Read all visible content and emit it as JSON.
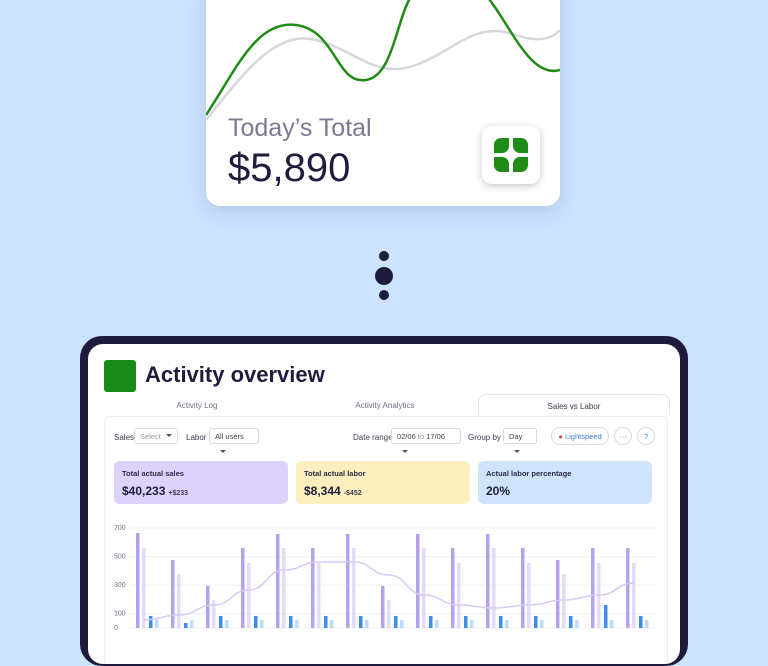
{
  "card": {
    "label": "Today’s Total",
    "value": "$5,890"
  },
  "dashboard": {
    "title": "Activity overview",
    "tabs": [
      "Activity Log",
      "Activity Analytics",
      "Sales vs Labor"
    ],
    "filters": {
      "sales_label": "Sales",
      "sales_select": "Select",
      "labor_label": "Labor",
      "labor_select": "All users",
      "date_label": "Date range",
      "date_from": "02/06",
      "date_to_word": "to",
      "date_to": "17/06",
      "group_label": "Group by",
      "group_select": "Day",
      "integration": "Lightspeed",
      "more": "···",
      "help": "?"
    },
    "kpis": [
      {
        "label": "Total actual sales",
        "value": "$40,233",
        "delta": "+$233",
        "color": "#ddd2fb"
      },
      {
        "label": "Total actual labor",
        "value": "$8,344",
        "delta": "-$452",
        "color": "#fbefbd"
      },
      {
        "label": "Actual labor percentage",
        "value": "20%",
        "color": "#cfe3fc"
      }
    ],
    "chart": {
      "type": "bar",
      "ylim": [
        0,
        700
      ],
      "yticks": [
        0,
        100,
        300,
        500,
        700
      ],
      "grid": true,
      "series": [
        {
          "type": "bar",
          "color": "#b4a2ef",
          "values": [
            665,
            476,
            294,
            560,
            658,
            560,
            658,
            294,
            658,
            560,
            658,
            560,
            476,
            560,
            560
          ]
        },
        {
          "type": "bar",
          "color": "#e3dbfb",
          "values": [
            560,
            378,
            196,
            455,
            560,
            455,
            560,
            196,
            560,
            455,
            560,
            455,
            378,
            455,
            455
          ]
        },
        {
          "type": "bar",
          "color": "#3d8ee8",
          "values": [
            84,
            35,
            84,
            84,
            84,
            84,
            84,
            84,
            84,
            84,
            84,
            84,
            84,
            161,
            84
          ]
        },
        {
          "type": "bar",
          "color": "#bcdcfa",
          "values": [
            56,
            56,
            56,
            56,
            56,
            56,
            56,
            56,
            56,
            56,
            56,
            56,
            56,
            56,
            56
          ]
        },
        {
          "type": "line",
          "color": "#d9c9f5",
          "values": [
            56,
            91,
            161,
            266,
            406,
            462,
            462,
            371,
            231,
            161,
            140,
            161,
            196,
            231,
            315
          ]
        }
      ]
    }
  }
}
